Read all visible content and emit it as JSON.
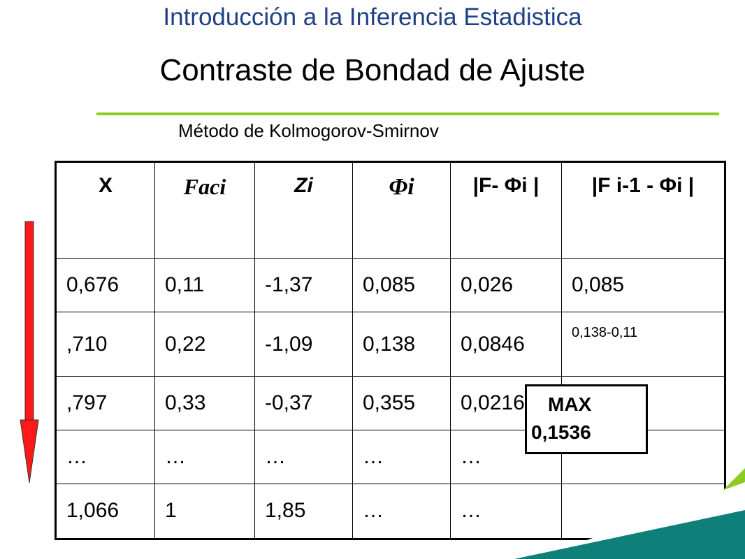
{
  "header": {
    "title": "Introducción a la Inferencia Estadistica",
    "subtitle": "Contraste de Bondad de Ajuste",
    "method": "Método de Kolmogorov-Smirnov"
  },
  "colors": {
    "title": "#1f3f86",
    "accent_green": "#8ccc1e",
    "teal": "#0f7f7a",
    "arrow_red": "#ff1a1a"
  },
  "table": {
    "headers": [
      "X",
      "Faci",
      "Zi",
      "Φi",
      "|F- Φi |",
      "|F i-1 - Φi |"
    ],
    "rows": [
      [
        "0,676",
        "0,11",
        "-1,37",
        "0,085",
        "0,026",
        "0,085"
      ],
      [
        ",710",
        "0,22",
        "-1,09",
        "0,138",
        "0,0846",
        "0,138-0,11"
      ],
      [
        ",797",
        "0,33",
        "-0,37",
        "0,355",
        "0,0216",
        ""
      ],
      [
        "…",
        "…",
        "…",
        "…",
        "…",
        ""
      ],
      [
        "1,066",
        "1",
        "1,85",
        "…",
        "…",
        ""
      ]
    ]
  },
  "max_box": {
    "line1": "MAX",
    "line2": "0,1536"
  }
}
